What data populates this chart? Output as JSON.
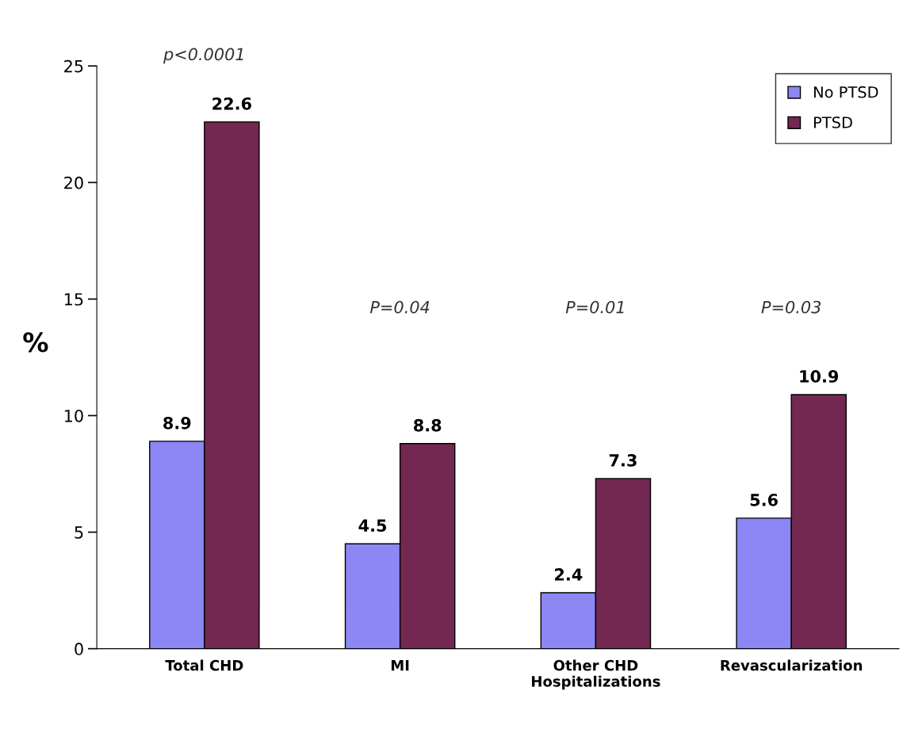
{
  "chart_data": {
    "type": "bar",
    "ylabel": "%",
    "categories": [
      "Total CHD",
      "MI",
      "Other CHD\nHospitalizations",
      "Revascularization"
    ],
    "series": [
      {
        "name": "No PTSD",
        "color": "#8c87f5",
        "values": [
          8.9,
          4.5,
          2.4,
          5.6
        ]
      },
      {
        "name": "PTSD",
        "color": "#722850",
        "values": [
          22.6,
          8.8,
          7.3,
          10.9
        ]
      }
    ],
    "ylim": [
      0,
      25
    ],
    "yticks": [
      0,
      5,
      10,
      15,
      20,
      25
    ],
    "data_labels": true,
    "grid": false,
    "legend": "top right",
    "annotations": [
      "p<0.0001",
      "P=0.04",
      "P=0.01",
      "P=0.03"
    ]
  }
}
